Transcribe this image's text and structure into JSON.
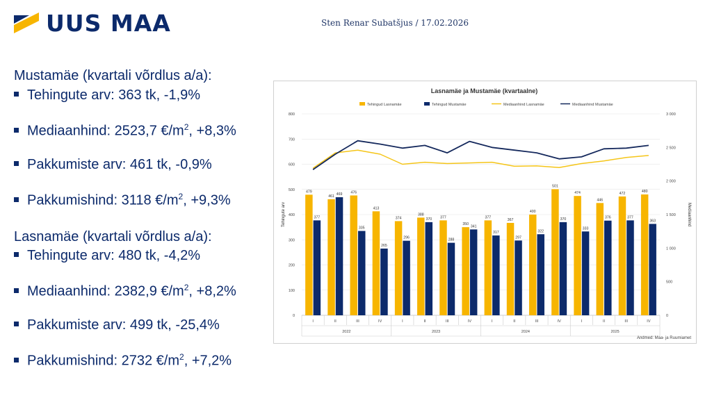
{
  "header": {
    "logo_text": "UUS MAA",
    "author": "Sten Renar Subatšjus / 17.02.2026"
  },
  "left_panel": {
    "sections": [
      {
        "heading": "Mustamäe (kvartali võrdlus a/a):",
        "items": [
          {
            "label": "Tehingute arv: 363 tk, -1,9%"
          },
          {
            "label": "Mediaanhind: 2523,7 €/m",
            "sup": "2",
            "suffix": ", +8,3%"
          },
          {
            "label": "Pakkumiste arv: 461 tk, -0,9%"
          },
          {
            "label": "Pakkumishind: 3118 €/m",
            "sup": "2",
            "suffix": ", +9,3%"
          }
        ]
      },
      {
        "heading": "Lasnamäe (kvartali võrdlus a/a):",
        "items": [
          {
            "label": "Tehingute arv: 480 tk, -4,2%"
          },
          {
            "label": "Mediaanhind: 2382,9 €/m",
            "sup": "2",
            "suffix": ", +8,2%"
          },
          {
            "label": "Pakkumiste arv: 499 tk, -25,4%"
          },
          {
            "label": "Pakkumishind: 2732 €/m",
            "sup": "2",
            "suffix": ", +7,2%"
          }
        ]
      }
    ]
  },
  "colors": {
    "navy": "#0c2a6b",
    "gold": "#f7b500",
    "gold_line": "#f5c518",
    "dark_line": "#14285c"
  },
  "chart_data": {
    "type": "bar+line",
    "title": "Lasnamäe ja Mustamäe (kvartaalne)",
    "ylabel": "Tehingute arv",
    "y2label": "Mediaanhind",
    "ylim": [
      0,
      800
    ],
    "y2lim": [
      0,
      3000
    ],
    "yticks": [
      "0",
      "100",
      "200",
      "300",
      "400",
      "500",
      "600",
      "700",
      "800"
    ],
    "y2ticks": [
      "0",
      "500",
      "1 000",
      "1 500",
      "2 000",
      "2 500",
      "3 000"
    ],
    "categories": [
      "I",
      "II",
      "III",
      "IV",
      "I",
      "II",
      "III",
      "IV",
      "I",
      "II",
      "III",
      "IV",
      "I",
      "II",
      "III",
      "IV"
    ],
    "years": [
      "2022",
      "2023",
      "2024",
      "2025"
    ],
    "source": "Andmed: Maa- ja Ruumiamet",
    "series": [
      {
        "name": "Tehingud Lasnamäe",
        "kind": "bar",
        "values": [
          479,
          461,
          476,
          413,
          374,
          388,
          377,
          350,
          377,
          367,
          400,
          501,
          474,
          446,
          472,
          480
        ]
      },
      {
        "name": "Tehingud Mustamäe",
        "kind": "bar",
        "values": [
          377,
          469,
          335,
          265,
          296,
          370,
          288,
          341,
          317,
          297,
          322,
          370,
          333,
          376,
          377,
          363
        ]
      },
      {
        "name": "Mediaanhind Lasnamäe",
        "kind": "line",
        "values": [
          2190,
          2420,
          2460,
          2400,
          2250,
          2280,
          2260,
          2270,
          2280,
          2220,
          2225,
          2200,
          2260,
          2300,
          2350,
          2380
        ]
      },
      {
        "name": "Mediaanhind Mustamäe",
        "kind": "line",
        "values": [
          2170,
          2400,
          2600,
          2550,
          2490,
          2530,
          2420,
          2590,
          2500,
          2460,
          2420,
          2330,
          2360,
          2480,
          2490,
          2530
        ]
      }
    ]
  }
}
